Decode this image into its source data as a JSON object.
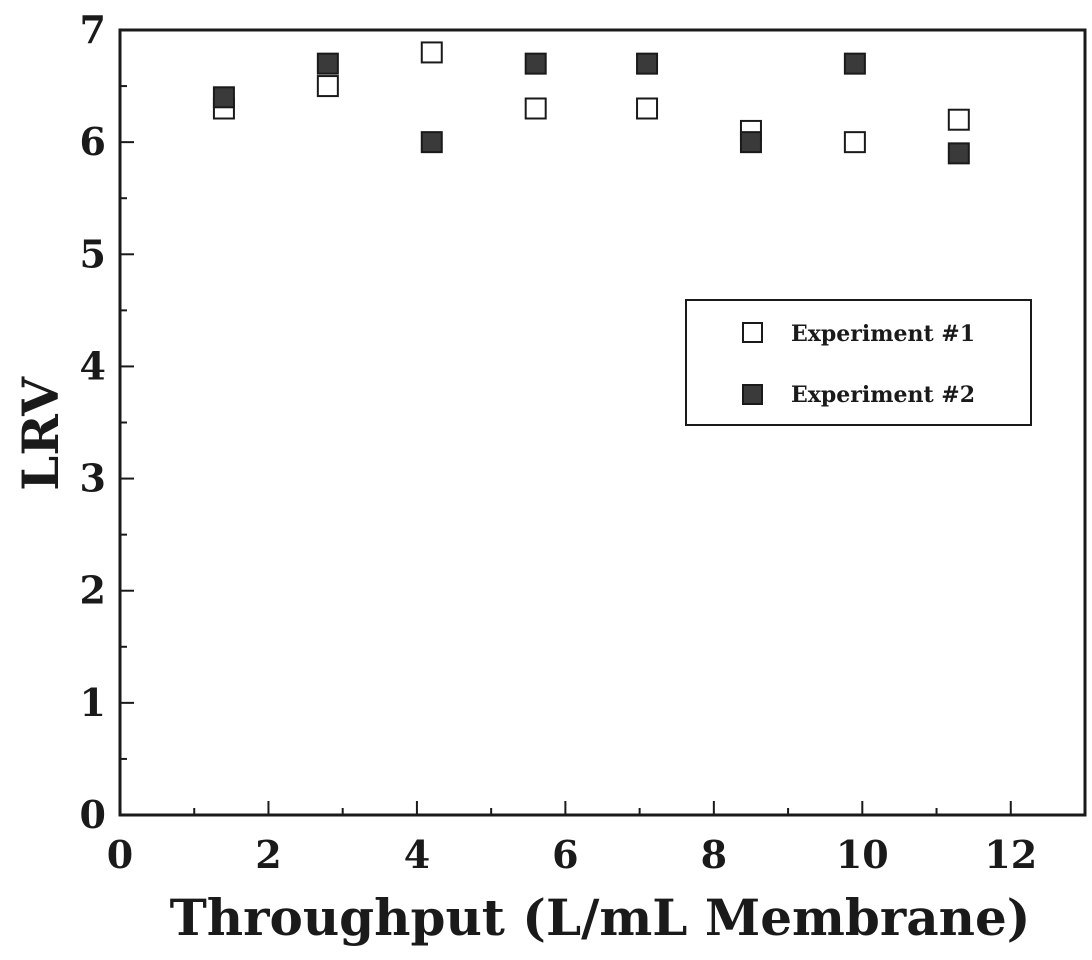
{
  "chart_data": {
    "type": "scatter",
    "xlabel": "Throughput (L/mL Membrane)",
    "ylabel": "LRV",
    "xlim": [
      0,
      13
    ],
    "ylim": [
      0,
      7
    ],
    "xticks": [
      "0",
      "2",
      "4",
      "6",
      "8",
      "10",
      "12"
    ],
    "yticks": [
      "0",
      "1",
      "2",
      "3",
      "4",
      "5",
      "6",
      "7"
    ],
    "grid": false,
    "legend_position": "middle-right",
    "series": [
      {
        "name": "Experiment #1",
        "marker": "open-square",
        "color": "#1a1a1a",
        "points": [
          {
            "x": 1.4,
            "y": 6.3
          },
          {
            "x": 2.8,
            "y": 6.5
          },
          {
            "x": 4.2,
            "y": 6.8
          },
          {
            "x": 5.6,
            "y": 6.3
          },
          {
            "x": 7.1,
            "y": 6.3
          },
          {
            "x": 8.5,
            "y": 6.1
          },
          {
            "x": 9.9,
            "y": 6.0
          },
          {
            "x": 11.3,
            "y": 6.2
          }
        ]
      },
      {
        "name": "Experiment #2",
        "marker": "filled-square",
        "color": "#3a3a3a",
        "points": [
          {
            "x": 1.4,
            "y": 6.4
          },
          {
            "x": 2.8,
            "y": 6.7
          },
          {
            "x": 4.2,
            "y": 6.0
          },
          {
            "x": 5.6,
            "y": 6.7
          },
          {
            "x": 7.1,
            "y": 6.7
          },
          {
            "x": 8.5,
            "y": 6.0
          },
          {
            "x": 9.9,
            "y": 6.7
          },
          {
            "x": 11.3,
            "y": 5.9
          }
        ]
      }
    ]
  }
}
